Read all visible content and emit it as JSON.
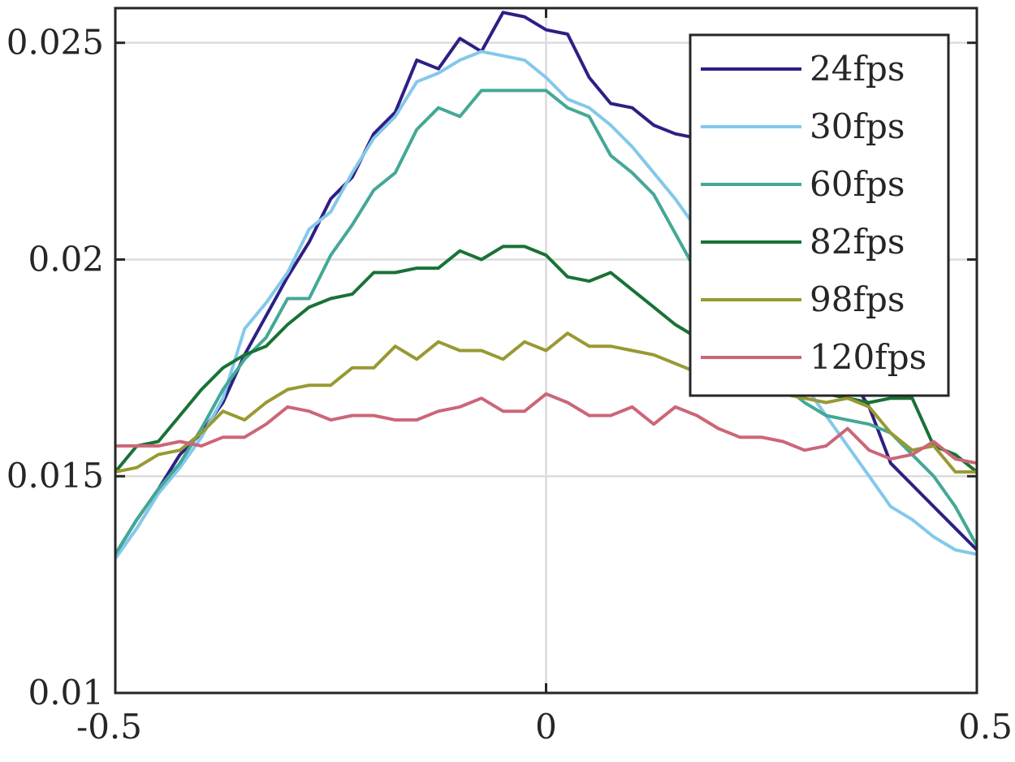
{
  "chart_data": {
    "type": "line",
    "title": "",
    "xlabel": "",
    "ylabel": "",
    "xlim": [
      -0.5,
      0.5
    ],
    "ylim": [
      0.01,
      0.0258
    ],
    "xticks": [
      -0.5,
      0,
      0.5
    ],
    "xtick_labels": [
      "-0.5",
      "0",
      "0.5"
    ],
    "yticks": [
      0.01,
      0.015,
      0.02,
      0.025
    ],
    "ytick_labels": [
      "0.01",
      "0.015",
      "0.02",
      "0.025"
    ],
    "grid": true,
    "legend_position": "top-right",
    "x": [
      -0.5,
      -0.475,
      -0.45,
      -0.425,
      -0.4,
      -0.375,
      -0.35,
      -0.325,
      -0.3,
      -0.275,
      -0.25,
      -0.225,
      -0.2,
      -0.175,
      -0.15,
      -0.125,
      -0.1,
      -0.075,
      -0.05,
      -0.025,
      0,
      0.025,
      0.05,
      0.075,
      0.1,
      0.125,
      0.15,
      0.175,
      0.2,
      0.225,
      0.25,
      0.275,
      0.3,
      0.325,
      0.35,
      0.375,
      0.4,
      0.425,
      0.45,
      0.475,
      0.5
    ],
    "series": [
      {
        "name": "24fps",
        "color": "#2e1f84",
        "values": [
          0.0132,
          0.014,
          0.0147,
          0.0155,
          0.016,
          0.0167,
          0.0178,
          0.0187,
          0.0196,
          0.0204,
          0.0214,
          0.0219,
          0.0229,
          0.0234,
          0.0246,
          0.0244,
          0.0251,
          0.0248,
          0.0257,
          0.0256,
          0.0253,
          0.0252,
          0.0242,
          0.0236,
          0.0235,
          0.0231,
          0.0229,
          0.0228,
          0.0224,
          0.0219,
          0.0212,
          0.0203,
          0.0194,
          0.0184,
          0.0174,
          0.0166,
          0.0153,
          0.0148,
          0.0143,
          0.0138,
          0.0133
        ]
      },
      {
        "name": "30fps",
        "color": "#84c8ea",
        "values": [
          0.0131,
          0.0138,
          0.0146,
          0.0152,
          0.0159,
          0.0168,
          0.0184,
          0.019,
          0.0197,
          0.0207,
          0.0211,
          0.022,
          0.0228,
          0.0233,
          0.0241,
          0.0243,
          0.0246,
          0.0248,
          0.0247,
          0.0246,
          0.0242,
          0.0237,
          0.0235,
          0.0231,
          0.0226,
          0.022,
          0.0214,
          0.0207,
          0.0198,
          0.0191,
          0.0185,
          0.0178,
          0.0171,
          0.0164,
          0.0157,
          0.015,
          0.0143,
          0.014,
          0.0136,
          0.0133,
          0.0132
        ]
      },
      {
        "name": "60fps",
        "color": "#44a896",
        "values": [
          0.0132,
          0.014,
          0.0147,
          0.0153,
          0.0161,
          0.017,
          0.0177,
          0.0182,
          0.0191,
          0.0191,
          0.0201,
          0.0208,
          0.0216,
          0.022,
          0.023,
          0.0235,
          0.0233,
          0.0239,
          0.0239,
          0.0239,
          0.0239,
          0.0235,
          0.0233,
          0.0224,
          0.022,
          0.0215,
          0.0206,
          0.0197,
          0.0189,
          0.0182,
          0.0176,
          0.0171,
          0.0167,
          0.0164,
          0.0163,
          0.0162,
          0.016,
          0.0155,
          0.015,
          0.0143,
          0.0134
        ]
      },
      {
        "name": "82fps",
        "color": "#197235",
        "values": [
          0.0151,
          0.0157,
          0.0158,
          0.0164,
          0.017,
          0.0175,
          0.0178,
          0.018,
          0.0185,
          0.0189,
          0.0191,
          0.0192,
          0.0197,
          0.0197,
          0.0198,
          0.0198,
          0.0202,
          0.02,
          0.0203,
          0.0203,
          0.0201,
          0.0196,
          0.0195,
          0.0197,
          0.0193,
          0.0189,
          0.0185,
          0.0182,
          0.0179,
          0.0176,
          0.0174,
          0.0172,
          0.017,
          0.0169,
          0.0168,
          0.0167,
          0.0168,
          0.0168,
          0.0157,
          0.0155,
          0.0151
        ]
      },
      {
        "name": "98fps",
        "color": "#999933",
        "values": [
          0.0151,
          0.0152,
          0.0155,
          0.0156,
          0.016,
          0.0165,
          0.0163,
          0.0167,
          0.017,
          0.0171,
          0.0171,
          0.0175,
          0.0175,
          0.018,
          0.0177,
          0.0181,
          0.0179,
          0.0179,
          0.0177,
          0.0181,
          0.0179,
          0.0183,
          0.018,
          0.018,
          0.0179,
          0.0178,
          0.0176,
          0.0174,
          0.0172,
          0.0171,
          0.017,
          0.0169,
          0.0168,
          0.0167,
          0.0168,
          0.0166,
          0.016,
          0.0156,
          0.0157,
          0.0151,
          0.0151
        ]
      },
      {
        "name": "120fps",
        "color": "#cc6677",
        "values": [
          0.0157,
          0.0157,
          0.0157,
          0.0158,
          0.0157,
          0.0159,
          0.0159,
          0.0162,
          0.0166,
          0.0165,
          0.0163,
          0.0164,
          0.0164,
          0.0163,
          0.0163,
          0.0165,
          0.0166,
          0.0168,
          0.0165,
          0.0165,
          0.0169,
          0.0167,
          0.0164,
          0.0164,
          0.0166,
          0.0162,
          0.0166,
          0.0164,
          0.0161,
          0.0159,
          0.0159,
          0.0158,
          0.0156,
          0.0157,
          0.0161,
          0.0156,
          0.0154,
          0.0155,
          0.0158,
          0.0154,
          0.0153
        ]
      }
    ]
  }
}
